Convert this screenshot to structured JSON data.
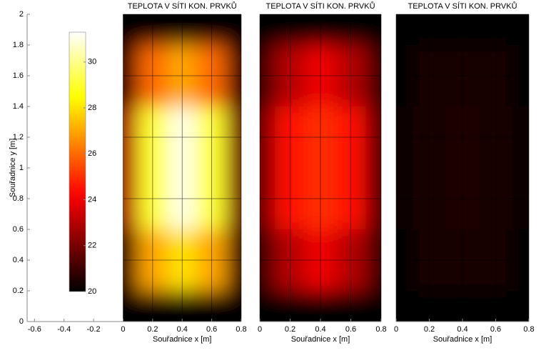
{
  "chart_data": [
    {
      "type": "heatmap",
      "title": "TEPLOTA V SÍTI KON. PRVKŮ",
      "xlabel": "Souřadnice x [m]",
      "ylabel": "Souřadnice y [m]",
      "xlim": [
        -0.65,
        0.8
      ],
      "xticks": [
        -0.6,
        -0.4,
        -0.2,
        0,
        0.2,
        0.4,
        0.6,
        0.8
      ],
      "ylim": [
        0,
        2
      ],
      "yticks": [
        0,
        0.2,
        0.4,
        0.6,
        0.8,
        1,
        1.2,
        1.4,
        1.6,
        1.8,
        2
      ],
      "mesh_x": [
        0,
        0.2,
        0.4,
        0.6,
        0.8
      ],
      "mesh_y": [
        0,
        0.4,
        0.8,
        1.2,
        1.6,
        2
      ],
      "z": [
        [
          20,
          20,
          20,
          20,
          20
        ],
        [
          21,
          27,
          28,
          27,
          21
        ],
        [
          23,
          29,
          31,
          29,
          22
        ],
        [
          23,
          29,
          31,
          29,
          22
        ],
        [
          21,
          26,
          27,
          26,
          21
        ],
        [
          20,
          20,
          20,
          20,
          20
        ]
      ],
      "colormap": "hot",
      "clim": [
        20,
        31.3
      ],
      "colorbar_ticks": [
        20,
        22,
        24,
        26,
        28,
        30
      ]
    },
    {
      "type": "heatmap",
      "title": "TEPLOTA V SÍTI KON. PRVKŮ",
      "xlabel": "Souřadnice x [m]",
      "xlim": [
        0,
        0.8
      ],
      "xticks": [
        0,
        0.2,
        0.4,
        0.6,
        0.8
      ],
      "ylim": [
        0,
        2
      ],
      "mesh_x": [
        0,
        0.2,
        0.4,
        0.6,
        0.8
      ],
      "mesh_y": [
        0,
        0.4,
        0.8,
        1.2,
        1.6,
        2
      ],
      "z": [
        [
          20,
          20,
          20,
          20,
          20
        ],
        [
          21,
          23,
          24,
          23,
          21
        ],
        [
          22,
          24.5,
          25,
          24.5,
          21.5
        ],
        [
          22,
          24.5,
          25,
          24.5,
          21.5
        ],
        [
          21,
          23,
          24,
          23,
          21
        ],
        [
          20,
          20,
          20,
          20,
          20
        ]
      ],
      "colormap": "hot",
      "clim": [
        20,
        31.3
      ]
    },
    {
      "type": "heatmap",
      "title": "TEPLOTA V SÍTI KON. PRVKŮ",
      "xlabel": "Souřadnice x [m]",
      "xlim": [
        0,
        0.8
      ],
      "xticks": [
        0,
        0.2,
        0.4,
        0.6,
        0.8
      ],
      "ylim": [
        0,
        2
      ],
      "mesh_x": [
        0,
        0.2,
        0.4,
        0.6,
        0.8
      ],
      "mesh_y": [
        0,
        0.4,
        0.8,
        1.2,
        1.6,
        2
      ],
      "z": [
        [
          20,
          20,
          20,
          20,
          20
        ],
        [
          20.1,
          20.3,
          20.4,
          20.3,
          20.1
        ],
        [
          20.2,
          20.4,
          20.5,
          20.4,
          20.2
        ],
        [
          20.2,
          20.4,
          20.5,
          20.4,
          20.2
        ],
        [
          20.1,
          20.3,
          20.4,
          20.3,
          20.1
        ],
        [
          20,
          20,
          20,
          20,
          20
        ]
      ],
      "colormap": "hot",
      "clim": [
        20,
        31.3
      ]
    }
  ]
}
